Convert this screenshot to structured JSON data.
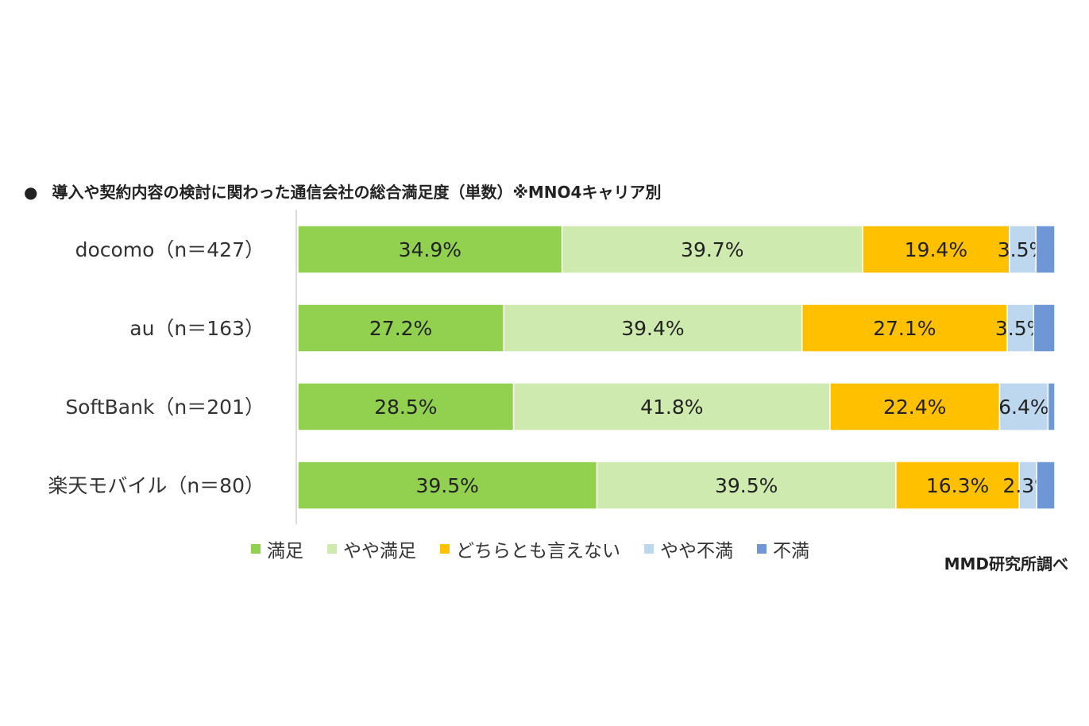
{
  "title": "導入や契約内容の検討に関わった通信会社の総合満足度（単数）※MNO4キャリア別",
  "title_bullet": "●",
  "source": "MMD研究所調べ",
  "chart_data": {
    "type": "bar",
    "orientation": "horizontal",
    "stacked": "100%",
    "title": "導入や契約内容の検討に関わった通信会社の総合満足度（単数）※MNO4キャリア別",
    "categories": [
      "docomo（n＝427）",
      "au（n＝163）",
      "SoftBank（n＝201）",
      "楽天モバイル（n＝80）"
    ],
    "series": [
      {
        "name": "満足",
        "color": "#92d050",
        "values": [
          34.9,
          27.2,
          28.5,
          39.5
        ],
        "labels": [
          "34.9%",
          "27.2%",
          "28.5%",
          "39.5%"
        ]
      },
      {
        "name": "やや満足",
        "color": "#cfeaaf",
        "values": [
          39.7,
          39.4,
          41.8,
          39.5
        ],
        "labels": [
          "39.7%",
          "39.4%",
          "41.8%",
          "39.5%"
        ]
      },
      {
        "name": "どちらとも言えない",
        "color": "#ffc000",
        "values": [
          19.4,
          27.1,
          22.4,
          16.3
        ],
        "labels": [
          "19.4%",
          "27.1%",
          "22.4%",
          "16.3%"
        ]
      },
      {
        "name": "やや不満",
        "color": "#bdd7ee",
        "values": [
          3.5,
          3.5,
          6.4,
          2.3
        ],
        "labels": [
          "3.5%",
          "3.5%",
          "6.4%",
          "2.3%"
        ]
      },
      {
        "name": "不満",
        "color": "#6f97d6",
        "values": [
          2.5,
          2.8,
          0.9,
          2.4
        ],
        "labels": [
          "",
          "",
          "",
          ""
        ]
      }
    ],
    "xlim": [
      0,
      100
    ],
    "legend_position": "bottom",
    "grid": false
  }
}
